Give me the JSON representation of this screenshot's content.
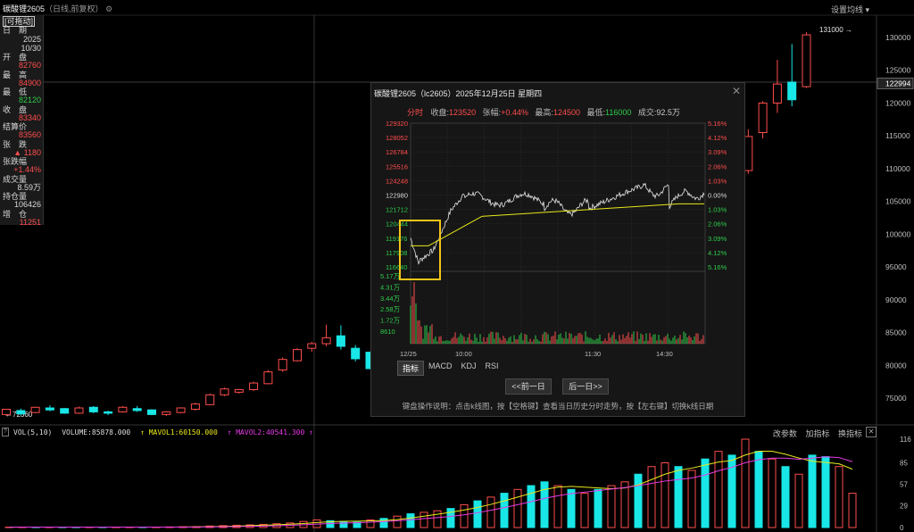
{
  "header": {
    "title": "碳酸锂2605",
    "subtitle": "（日线,前复权）",
    "settings_label": "设置均线 ▾"
  },
  "info": {
    "badge": "[可拖动]",
    "rows": [
      {
        "label": "日　期",
        "value": "2025\n10/30",
        "color": "#d8d8d8"
      },
      {
        "label": "开　盘",
        "value": "82760",
        "color": "#ff4d4d"
      },
      {
        "label": "最　高",
        "value": "84900",
        "color": "#ff4d4d"
      },
      {
        "label": "最　低",
        "value": "82120",
        "color": "#2ecc4b"
      },
      {
        "label": "收　盘",
        "value": "83340",
        "color": "#ff4d4d"
      },
      {
        "label": "结算价",
        "value": "83560",
        "color": "#ff4d4d"
      },
      {
        "label": "张　跌",
        "value": "▲ 1180",
        "color": "#ff4d4d"
      },
      {
        "label": "张跌幅",
        "value": "+1.44%",
        "color": "#ff4d4d"
      },
      {
        "label": "成交量",
        "value": "8.59万",
        "color": "#d8d8d8"
      },
      {
        "label": "持仓量",
        "value": "106426",
        "color": "#d8d8d8"
      },
      {
        "label": "增　仓",
        "value": "11251",
        "color": "#ff4d4d"
      }
    ]
  },
  "price_axis": {
    "ticks": [
      "130000",
      "125000",
      "120000",
      "115000",
      "110000",
      "105000",
      "100000",
      "95000",
      "90000",
      "85000",
      "80000",
      "75000"
    ],
    "current": "122994",
    "max_label": "131000",
    "min_label": "72360"
  },
  "popup": {
    "title": "碳酸锂2605（lc2605）2025年12月25日 星期四",
    "close": "✕",
    "mode": "分时",
    "close_label": "收盘:",
    "close_value": "123520",
    "chg_label": "张幅:",
    "chg_value": "+0.44%",
    "high_label": "最高:",
    "high_value": "124500",
    "low_label": "最低:",
    "low_value": "116000",
    "vol_label": "成交:",
    "vol_value": "92.5万",
    "left_ticks": [
      "129320",
      "128052",
      "126784",
      "125516",
      "124248",
      "122980",
      "121712",
      "120444",
      "119176",
      "117908",
      "116640"
    ],
    "right_ticks": [
      "5.16%",
      "4.12%",
      "3.09%",
      "2.06%",
      "1.03%",
      "0.00%",
      "1.03%",
      "2.06%",
      "3.09%",
      "4.12%",
      "5.16%"
    ],
    "vol_ticks": [
      "5.17万",
      "4.31万",
      "3.44万",
      "2.58万",
      "1.72万",
      "8610"
    ],
    "time_labels": [
      "12/25",
      "10:00",
      "11:30",
      "14:30"
    ],
    "tabs": [
      "指标",
      "MACD",
      "KDJ",
      "RSI"
    ],
    "prev": "<<前一日",
    "next": "后一日>>",
    "tip": "键盘操作说明：点击k线图，按【空格键】查看当日历史分时走势，按【左右键】切换k线日期"
  },
  "volume_panel": {
    "q": "?",
    "vol_label": "VOL(5,10)",
    "volume": "VOLUME:85878.000",
    "mavol1": "↑ MAVOL1:60150.000",
    "mavol2": "↑ MAVOL2:40541.300 ↑",
    "tools": [
      "改参数",
      "加指标",
      "换指标"
    ],
    "close": "✕",
    "ticks": [
      "116",
      "85",
      "57",
      "29",
      "0"
    ]
  },
  "colors": {
    "up": "#ff4d4d",
    "down": "#19e6e6",
    "ma1": "#e8e81a",
    "ma2": "#e83ae8",
    "grid": "#2a2a2a",
    "highlight": "#f5c518"
  }
}
